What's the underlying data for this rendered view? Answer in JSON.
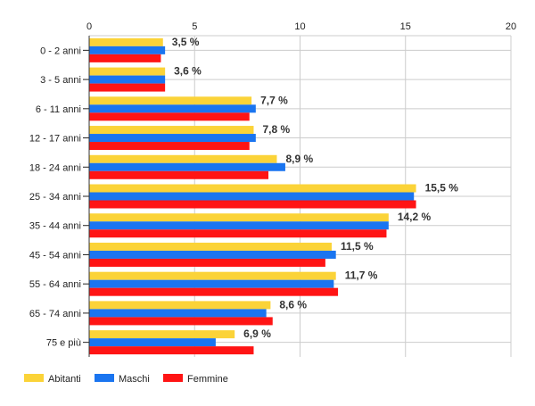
{
  "chart_data": {
    "type": "bar",
    "orientation": "horizontal",
    "categories": [
      "0 - 2 anni",
      "3 - 5 anni",
      "6 - 11 anni",
      "12 - 17 anni",
      "18 - 24 anni",
      "25 - 34 anni",
      "35 - 44 anni",
      "45 - 54 anni",
      "55 - 64 anni",
      "65 - 74 anni",
      "75 e più"
    ],
    "series": [
      {
        "name": "Abitanti",
        "color": "#fbd338",
        "values": [
          3.5,
          3.6,
          7.7,
          7.8,
          8.9,
          15.5,
          14.2,
          11.5,
          11.7,
          8.6,
          6.9
        ]
      },
      {
        "name": "Maschi",
        "color": "#1a75f0",
        "values": [
          3.6,
          3.6,
          7.9,
          7.9,
          9.3,
          15.4,
          14.2,
          11.7,
          11.6,
          8.4,
          6.0
        ]
      },
      {
        "name": "Femmine",
        "color": "#ff1414",
        "values": [
          3.4,
          3.6,
          7.6,
          7.6,
          8.5,
          15.5,
          14.1,
          11.2,
          11.8,
          8.7,
          7.8
        ]
      }
    ],
    "data_labels": [
      "3,5 %",
      "3,6 %",
      "7,7 %",
      "7,8 %",
      "8,9 %",
      "15,5 %",
      "14,2 %",
      "11,5 %",
      "11,7 %",
      "8,6 %",
      "6,9 %"
    ],
    "xlim": [
      0,
      20
    ],
    "xticks": [
      "0",
      "5",
      "10",
      "15",
      "20"
    ],
    "xaxis_position": "top",
    "grid": true,
    "legend_position": "bottom-left",
    "title": "",
    "xlabel": "",
    "ylabel": ""
  }
}
